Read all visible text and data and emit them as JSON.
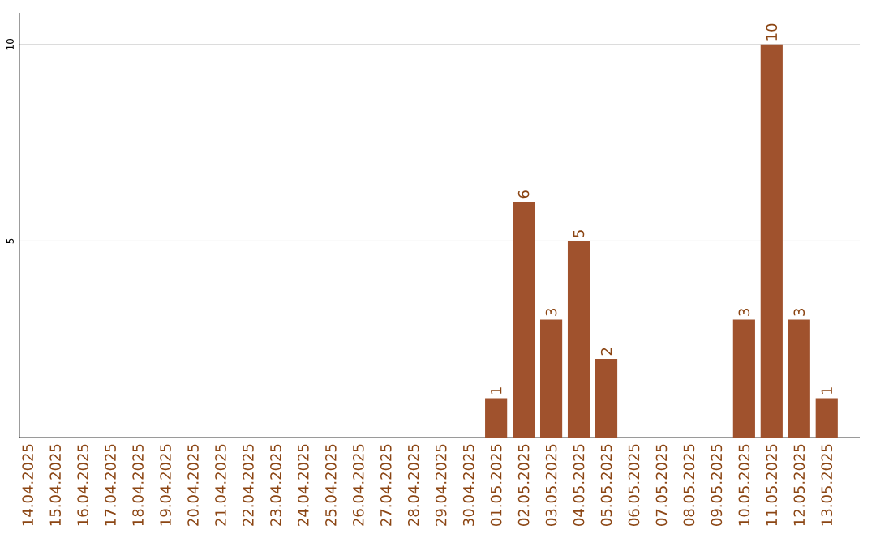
{
  "chart_data": {
    "type": "bar",
    "categories": [
      "14.04.2025",
      "15.04.2025",
      "16.04.2025",
      "17.04.2025",
      "18.04.2025",
      "19.04.2025",
      "20.04.2025",
      "21.04.2025",
      "22.04.2025",
      "23.04.2025",
      "24.04.2025",
      "25.04.2025",
      "26.04.2025",
      "27.04.2025",
      "28.04.2025",
      "29.04.2025",
      "30.04.2025",
      "01.05.2025",
      "02.05.2025",
      "03.05.2025",
      "04.05.2025",
      "05.05.2025",
      "06.05.2025",
      "07.05.2025",
      "08.05.2025",
      "09.05.2025",
      "10.05.2025",
      "11.05.2025",
      "12.05.2025",
      "13.05.2025"
    ],
    "values": [
      0,
      0,
      0,
      0,
      0,
      0,
      0,
      0,
      0,
      0,
      0,
      0,
      0,
      0,
      0,
      0,
      0,
      1,
      6,
      3,
      5,
      2,
      0,
      0,
      0,
      0,
      3,
      10,
      3,
      1
    ],
    "value_labels": [
      null,
      null,
      null,
      null,
      null,
      null,
      null,
      null,
      null,
      null,
      null,
      null,
      null,
      null,
      null,
      null,
      null,
      "1",
      "6",
      "3",
      "5",
      "2",
      null,
      null,
      null,
      null,
      "3",
      "10",
      "3",
      "1"
    ],
    "color": "#a0522d",
    "ylim": [
      0,
      10.8
    ],
    "yticks": [
      5,
      10
    ],
    "grid": "y"
  }
}
